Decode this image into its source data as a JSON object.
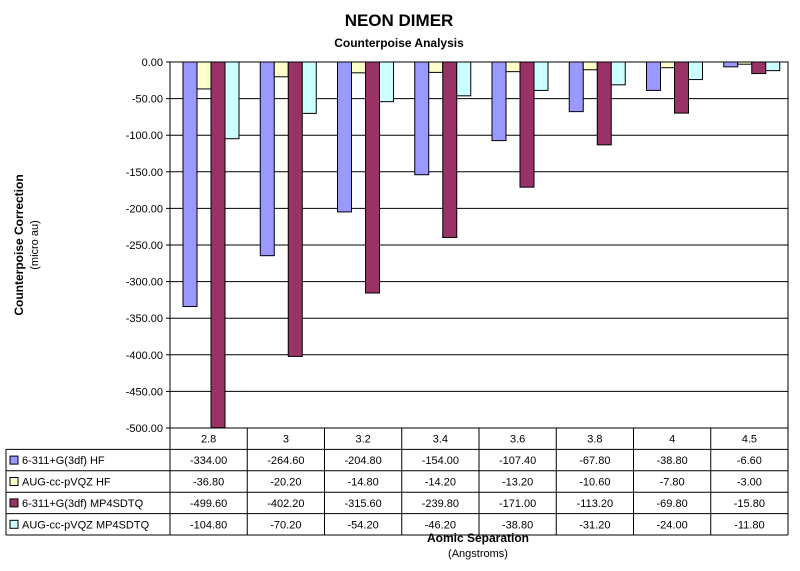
{
  "chart_data": {
    "type": "bar",
    "title": "NEON DIMER",
    "subtitle": "Counterpoise Analysis",
    "ylabel": "Counterpoise Correction",
    "ylabel_sub": "(micro au)",
    "xlabel": "Aomic Separation",
    "xlabel_sub": "(Angstroms)",
    "ylim": [
      -500,
      0
    ],
    "ytick_step": 50,
    "yticks": [
      "0.00",
      "-50.00",
      "-100.00",
      "-150.00",
      "-200.00",
      "-250.00",
      "-300.00",
      "-350.00",
      "-400.00",
      "-450.00",
      "-500.00"
    ],
    "grid": true,
    "legend_position": "data-table",
    "categories": [
      "2.8",
      "3",
      "3.2",
      "3.4",
      "3.6",
      "3.8",
      "4",
      "4.5"
    ],
    "series": [
      {
        "name": "6-311+G(3df) HF",
        "color": "#9999ff",
        "values": [
          -334.0,
          -264.6,
          -204.8,
          -154.0,
          -107.4,
          -67.8,
          -38.8,
          -6.6
        ],
        "labels": [
          "-334.00",
          "-264.60",
          "-204.80",
          "-154.00",
          "-107.40",
          "-67.80",
          "-38.80",
          "-6.60"
        ]
      },
      {
        "name": "AUG-cc-pVQZ HF",
        "color": "#ffffcc",
        "values": [
          -36.8,
          -20.2,
          -14.8,
          -14.2,
          -13.2,
          -10.6,
          -7.8,
          -3.0
        ],
        "labels": [
          "-36.80",
          "-20.20",
          "-14.80",
          "-14.20",
          "-13.20",
          "-10.60",
          "-7.80",
          "-3.00"
        ]
      },
      {
        "name": "6-311+G(3df) MP4SDTQ",
        "color": "#993366",
        "values": [
          -499.6,
          -402.2,
          -315.6,
          -239.8,
          -171.0,
          -113.2,
          -69.8,
          -15.8
        ],
        "labels": [
          "-499.60",
          "-402.20",
          "-315.60",
          "-239.80",
          "-171.00",
          "-113.20",
          "-69.80",
          "-15.80"
        ]
      },
      {
        "name": "AUG-cc-pVQZ MP4SDTQ",
        "color": "#ccffff",
        "values": [
          -104.8,
          -70.2,
          -54.2,
          -46.2,
          -38.8,
          -31.2,
          -24.0,
          -11.8
        ],
        "labels": [
          "-104.80",
          "-70.20",
          "-54.20",
          "-46.20",
          "-38.80",
          "-31.20",
          "-24.00",
          "-11.80"
        ]
      }
    ]
  }
}
